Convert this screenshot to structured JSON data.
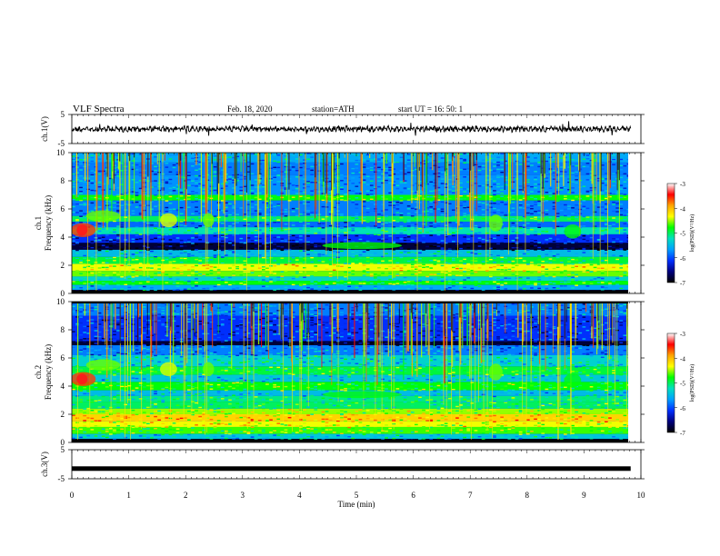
{
  "header": {
    "title": "VLF  Spectra",
    "date": "Feb. 18, 2020",
    "station": "station=ATH",
    "start": "start  UT  =   16: 50: 1"
  },
  "colorbar": {
    "label": "log(PSD)(V²/Hz)",
    "ticks": [
      "-3",
      "-4",
      "-5",
      "-6",
      "-7"
    ],
    "colormap": [
      "#ffffff",
      "#ff0000",
      "#ffa500",
      "#ffff00",
      "#00ff00",
      "#00e0c0",
      "#00a0ff",
      "#0030ff",
      "#000080",
      "#000000"
    ]
  },
  "chart_data": [
    {
      "type": "line",
      "name": "ch1-waveform",
      "ylabel": "ch.1(V)",
      "ylim": [
        -5,
        5
      ],
      "yticks": [
        "5",
        "-5"
      ],
      "xlim": [
        0,
        10
      ],
      "trace_level": 0
    },
    {
      "type": "heatmap",
      "name": "ch1-spectrogram",
      "ylabel": "ch.1\nFrequency (kHz)",
      "ylabel_lines": [
        "ch.1",
        "Frequency  (kHz)"
      ],
      "ylim": [
        0,
        10
      ],
      "yticks": [
        "10",
        "8",
        "6",
        "4",
        "2",
        "0"
      ],
      "xlim": [
        0,
        10
      ],
      "zlim": [
        -7,
        -3
      ]
    },
    {
      "type": "heatmap",
      "name": "ch2-spectrogram",
      "ylabel": "ch.2\nFrequency (kHz)",
      "ylabel_lines": [
        "ch.2",
        "Frequency  (kHz)"
      ],
      "ylim": [
        0,
        10
      ],
      "yticks": [
        "10",
        "8",
        "6",
        "4",
        "2",
        "0"
      ],
      "xlim": [
        0,
        10
      ],
      "zlim": [
        -7,
        -3
      ]
    },
    {
      "type": "line",
      "name": "ch3-waveform",
      "ylabel": "ch.3(V)",
      "ylim": [
        -5,
        5
      ],
      "yticks": [
        "5",
        "-5"
      ],
      "xlim": [
        0,
        10
      ],
      "trace_level": -1.5
    }
  ],
  "xaxis": {
    "label": "Time  (min)",
    "ticks": [
      "0",
      "1",
      "2",
      "3",
      "4",
      "5",
      "6",
      "7",
      "8",
      "9",
      "10"
    ],
    "range": [
      0,
      10
    ]
  }
}
